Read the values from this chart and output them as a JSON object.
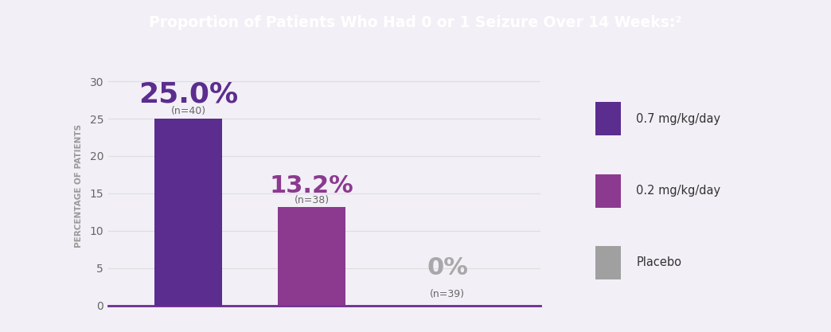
{
  "title": "Proportion of Patients Who Had 0 or 1 Seizure Over 14 Weeks:²",
  "title_bg_color": "#A03AA0",
  "title_text_color": "#FFFFFF",
  "background_color": "#F2EFF6",
  "bars": [
    {
      "label": "0.7 mg/kg/day",
      "value": 25.0,
      "n": 40,
      "color": "#5B2D8E",
      "pct_text": "25.0%",
      "pct_color": "#5B2D8E"
    },
    {
      "label": "0.2 mg/kg/day",
      "value": 13.2,
      "n": 38,
      "color": "#8B3A8F",
      "pct_text": "13.2%",
      "pct_color": "#8B3A8F"
    },
    {
      "label": "Placebo",
      "value": 0.0,
      "n": 39,
      "color": "#A0A0A0",
      "pct_text": "0%",
      "pct_color": "#A8A8A8"
    }
  ],
  "ylabel": "PERCENTAGE OF PATIENTS",
  "yticks": [
    0,
    5,
    10,
    15,
    20,
    25,
    30
  ],
  "ylim": [
    0,
    35
  ],
  "ylim_display": 32,
  "grid_color": "#DDDDDD",
  "axis_line_color": "#6B2D8E",
  "legend_colors": [
    "#5B2D8E",
    "#8B3A8F",
    "#A0A0A0"
  ],
  "legend_labels": [
    "0.7 mg/kg/day",
    "0.2 mg/kg/day",
    "Placebo"
  ]
}
